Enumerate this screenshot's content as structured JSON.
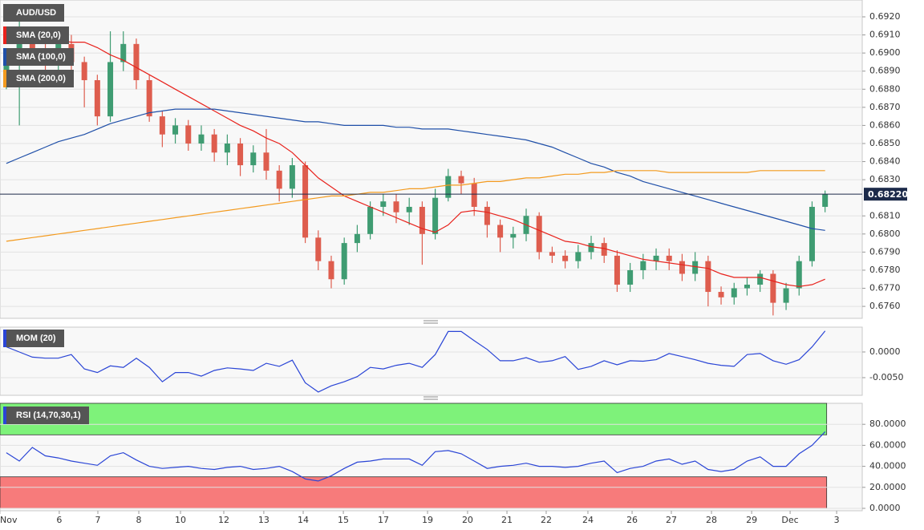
{
  "chart_data": [
    {
      "type": "candlestick",
      "title": "AUD/USD",
      "open": [
        0.6885,
        0.6895,
        0.6905,
        0.69,
        0.6895,
        0.6905,
        0.6895,
        0.6885,
        0.6865,
        0.6895,
        0.6905,
        0.6885,
        0.6865,
        0.6855,
        0.686,
        0.685,
        0.6855,
        0.6845,
        0.685,
        0.6838,
        0.6845,
        0.6835,
        0.6825,
        0.6838,
        0.6798,
        0.6785,
        0.6775,
        0.6795,
        0.68,
        0.6815,
        0.6818,
        0.6812,
        0.6815,
        0.68,
        0.682,
        0.6832,
        0.6828,
        0.6815,
        0.6805,
        0.6798,
        0.68,
        0.681,
        0.679,
        0.6788,
        0.6785,
        0.679,
        0.6795,
        0.6788,
        0.6772,
        0.678,
        0.6785,
        0.6788,
        0.6785,
        0.6778,
        0.6785,
        0.6768,
        0.6765,
        0.677,
        0.6772,
        0.6778,
        0.6762,
        0.677,
        0.6785,
        0.6815
      ],
      "high": [
        0.69,
        0.6925,
        0.691,
        0.6905,
        0.691,
        0.691,
        0.6898,
        0.6888,
        0.6912,
        0.6912,
        0.6908,
        0.6888,
        0.6868,
        0.6864,
        0.6863,
        0.686,
        0.6858,
        0.6855,
        0.6853,
        0.6849,
        0.6858,
        0.6838,
        0.6842,
        0.684,
        0.6802,
        0.6788,
        0.6798,
        0.6805,
        0.6818,
        0.6822,
        0.6822,
        0.682,
        0.6818,
        0.6825,
        0.6836,
        0.6835,
        0.6831,
        0.6818,
        0.6808,
        0.6804,
        0.6814,
        0.6812,
        0.6793,
        0.6791,
        0.6794,
        0.6799,
        0.6798,
        0.6791,
        0.6784,
        0.6789,
        0.6792,
        0.6792,
        0.6789,
        0.679,
        0.6788,
        0.6771,
        0.6773,
        0.6776,
        0.678,
        0.678,
        0.6773,
        0.6788,
        0.6818,
        0.6824
      ],
      "low": [
        0.688,
        0.686,
        0.6895,
        0.689,
        0.689,
        0.689,
        0.687,
        0.686,
        0.6862,
        0.689,
        0.688,
        0.6862,
        0.6848,
        0.685,
        0.6846,
        0.6846,
        0.684,
        0.6838,
        0.6832,
        0.6834,
        0.683,
        0.6818,
        0.682,
        0.6795,
        0.678,
        0.677,
        0.6772,
        0.679,
        0.6797,
        0.681,
        0.6806,
        0.6805,
        0.6783,
        0.6797,
        0.6818,
        0.6822,
        0.681,
        0.6798,
        0.679,
        0.6792,
        0.6796,
        0.6786,
        0.6784,
        0.6781,
        0.6781,
        0.6786,
        0.6784,
        0.6768,
        0.6768,
        0.6775,
        0.678,
        0.678,
        0.6774,
        0.6774,
        0.676,
        0.6761,
        0.6761,
        0.6766,
        0.6768,
        0.6755,
        0.6758,
        0.6766,
        0.6782,
        0.6812
      ],
      "close": [
        0.6895,
        0.6905,
        0.69,
        0.6895,
        0.6905,
        0.6895,
        0.6885,
        0.6865,
        0.6895,
        0.6905,
        0.6885,
        0.6865,
        0.6855,
        0.686,
        0.685,
        0.6855,
        0.6845,
        0.685,
        0.6838,
        0.6845,
        0.6835,
        0.6825,
        0.6838,
        0.6798,
        0.6785,
        0.6775,
        0.6795,
        0.68,
        0.6815,
        0.6818,
        0.6812,
        0.6815,
        0.68,
        0.682,
        0.6832,
        0.6828,
        0.6815,
        0.6805,
        0.6798,
        0.68,
        0.681,
        0.679,
        0.6788,
        0.6785,
        0.679,
        0.6795,
        0.6788,
        0.6772,
        0.678,
        0.6785,
        0.6788,
        0.6785,
        0.6778,
        0.6785,
        0.6768,
        0.6765,
        0.677,
        0.6772,
        0.6778,
        0.6762,
        0.677,
        0.6785,
        0.6815,
        0.6822
      ],
      "up_color": "#3f9c72",
      "down_color": "#de5d4e",
      "series": [
        {
          "name": "SMA (20,0)",
          "color": "#e8221c",
          "values": [
            0.6909,
            0.6908,
            0.6908,
            0.6907,
            0.6907,
            0.6906,
            0.6906,
            0.6903,
            0.6899,
            0.6896,
            0.6892,
            0.6888,
            0.6884,
            0.688,
            0.6876,
            0.6872,
            0.6868,
            0.6864,
            0.686,
            0.6857,
            0.6853,
            0.685,
            0.6845,
            0.6838,
            0.6831,
            0.6826,
            0.6821,
            0.6818,
            0.6815,
            0.6812,
            0.6809,
            0.6806,
            0.6803,
            0.6801,
            0.6805,
            0.6812,
            0.6813,
            0.6812,
            0.681,
            0.6808,
            0.6805,
            0.6802,
            0.6799,
            0.6796,
            0.6795,
            0.6793,
            0.6792,
            0.679,
            0.6788,
            0.6786,
            0.6785,
            0.6784,
            0.6783,
            0.6782,
            0.6781,
            0.6778,
            0.6776,
            0.6776,
            0.6776,
            0.6774,
            0.6772,
            0.6771,
            0.6772,
            0.6775
          ]
        },
        {
          "name": "SMA (100,0)",
          "color": "#1f4fa8",
          "values": [
            0.6839,
            0.6842,
            0.6845,
            0.6848,
            0.6851,
            0.6853,
            0.6855,
            0.6858,
            0.6861,
            0.6863,
            0.6865,
            0.6867,
            0.6868,
            0.6869,
            0.6869,
            0.6869,
            0.6869,
            0.6868,
            0.6867,
            0.6866,
            0.6865,
            0.6864,
            0.6863,
            0.6862,
            0.6862,
            0.6861,
            0.686,
            0.686,
            0.686,
            0.686,
            0.6859,
            0.6859,
            0.6858,
            0.6858,
            0.6858,
            0.6857,
            0.6856,
            0.6855,
            0.6854,
            0.6853,
            0.6852,
            0.685,
            0.6848,
            0.6845,
            0.6842,
            0.6839,
            0.6837,
            0.6834,
            0.6832,
            0.6829,
            0.6827,
            0.6825,
            0.6823,
            0.6821,
            0.6819,
            0.6817,
            0.6815,
            0.6813,
            0.6811,
            0.6809,
            0.6807,
            0.6805,
            0.6803,
            0.6802
          ]
        },
        {
          "name": "SMA (200,0)",
          "color": "#f39a1e",
          "values": [
            0.6796,
            0.6797,
            0.6798,
            0.6799,
            0.68,
            0.6801,
            0.6802,
            0.6803,
            0.6804,
            0.6805,
            0.6806,
            0.6807,
            0.6808,
            0.6809,
            0.681,
            0.6811,
            0.6812,
            0.6813,
            0.6814,
            0.6815,
            0.6816,
            0.6817,
            0.6818,
            0.6819,
            0.682,
            0.6821,
            0.6821,
            0.6822,
            0.6823,
            0.6823,
            0.6824,
            0.6825,
            0.6825,
            0.6826,
            0.6827,
            0.6827,
            0.6828,
            0.6829,
            0.6829,
            0.683,
            0.6831,
            0.6831,
            0.6832,
            0.6833,
            0.6833,
            0.6834,
            0.6834,
            0.6835,
            0.6835,
            0.6835,
            0.6835,
            0.6834,
            0.6834,
            0.6834,
            0.6834,
            0.6834,
            0.6834,
            0.6834,
            0.6835,
            0.6835,
            0.6835,
            0.6835,
            0.6835,
            0.6835
          ]
        }
      ],
      "last_price": {
        "value": 0.6822,
        "label": "0.68220"
      },
      "last_price_color": "#1c2a4a",
      "ylim": [
        0.67534,
        0.69293
      ],
      "yticks": [
        {
          "value": 0.676,
          "label": "0.6760"
        },
        {
          "value": 0.677,
          "label": "0.6770"
        },
        {
          "value": 0.678,
          "label": "0.6780"
        },
        {
          "value": 0.679,
          "label": "0.6790"
        },
        {
          "value": 0.68,
          "label": "0.6800"
        },
        {
          "value": 0.681,
          "label": "0.6810"
        },
        {
          "value": 0.683,
          "label": "0.6830"
        },
        {
          "value": 0.684,
          "label": "0.6840"
        },
        {
          "value": 0.685,
          "label": "0.6850"
        },
        {
          "value": 0.686,
          "label": "0.6860"
        },
        {
          "value": 0.687,
          "label": "0.6870"
        },
        {
          "value": 0.688,
          "label": "0.6880"
        },
        {
          "value": 0.689,
          "label": "0.6890"
        },
        {
          "value": 0.69,
          "label": "0.6900"
        },
        {
          "value": 0.691,
          "label": "0.6910"
        },
        {
          "value": 0.692,
          "label": "0.6920"
        }
      ],
      "grid": true
    },
    {
      "type": "line",
      "series": [
        {
          "name": "MOM (20)",
          "color": "#2a45d6",
          "values": [
            0.001,
            0.0,
            -0.001,
            -0.0012,
            -0.0012,
            -0.0005,
            -0.0033,
            -0.004,
            -0.0027,
            -0.003,
            -0.0012,
            -0.003,
            -0.0058,
            -0.004,
            -0.004,
            -0.0047,
            -0.0036,
            -0.0031,
            -0.0033,
            -0.0036,
            -0.0022,
            -0.0028,
            -0.0016,
            -0.006,
            -0.0078,
            -0.0066,
            -0.0058,
            -0.0048,
            -0.003,
            -0.0033,
            -0.0026,
            -0.0022,
            -0.003,
            -0.0005,
            0.004,
            0.004,
            0.0022,
            0.0005,
            -0.0017,
            -0.0017,
            -0.0011,
            -0.002,
            -0.0017,
            -0.0009,
            -0.0034,
            -0.0028,
            -0.0017,
            -0.0025,
            -0.0017,
            -0.0018,
            -0.0015,
            -0.0003,
            -0.0009,
            -0.0015,
            -0.0022,
            -0.0026,
            -0.0028,
            -0.0005,
            -0.0003,
            -0.0017,
            -0.0024,
            -0.0015,
            0.001,
            0.0041
          ]
        }
      ],
      "ylim": [
        -0.00844,
        0.00484
      ],
      "yticks": [
        {
          "value": -0.005,
          "label": "-0.0050"
        },
        {
          "value": 0,
          "label": "0.0000"
        }
      ],
      "grid": true
    },
    {
      "type": "line",
      "series": [
        {
          "name": "RSI (14,70,30,1)",
          "color": "#2a45d6",
          "values": [
            53,
            45,
            58,
            50,
            48,
            45,
            43,
            41,
            50,
            53,
            46,
            40,
            38,
            39,
            40,
            38,
            37,
            39,
            40,
            37,
            38,
            40,
            35,
            28,
            26,
            31,
            38,
            44,
            45,
            47,
            47,
            47,
            41,
            54,
            55,
            52,
            45,
            38,
            40,
            41,
            43,
            40,
            40,
            39,
            40,
            43,
            45,
            34,
            38,
            40,
            45,
            47,
            42,
            45,
            37,
            35,
            37,
            45,
            49,
            40,
            40,
            52,
            60,
            73
          ]
        }
      ],
      "zones": [
        {
          "from": 70,
          "to": 100,
          "color": "#7ef27a"
        },
        {
          "from": 0,
          "to": 30,
          "color": "#f77b7b"
        }
      ],
      "ylim": [
        -2.3,
        100
      ],
      "yticks": [
        {
          "value": 0,
          "label": "0.0000"
        },
        {
          "value": 20,
          "label": "20.0000"
        },
        {
          "value": 40,
          "label": "40.0000"
        },
        {
          "value": 60,
          "label": "60.0000"
        },
        {
          "value": 80,
          "label": "80.0000"
        }
      ],
      "xlim": [
        -0.49,
        65.86
      ],
      "xticks": [
        {
          "value": -0.5,
          "label": "Nov"
        },
        {
          "value": 4.07,
          "label": "6"
        },
        {
          "value": 7.04,
          "label": "7"
        },
        {
          "value": 10.19,
          "label": "8"
        },
        {
          "value": 13.4,
          "label": "10"
        },
        {
          "value": 16.73,
          "label": "12"
        },
        {
          "value": 19.81,
          "label": "13"
        },
        {
          "value": 22.84,
          "label": "14"
        },
        {
          "value": 25.93,
          "label": "15"
        },
        {
          "value": 29.01,
          "label": "17"
        },
        {
          "value": 32.41,
          "label": "19"
        },
        {
          "value": 35.49,
          "label": "20"
        },
        {
          "value": 38.52,
          "label": "21"
        },
        {
          "value": 41.54,
          "label": "22"
        },
        {
          "value": 44.75,
          "label": "24"
        },
        {
          "value": 48.15,
          "label": "26"
        },
        {
          "value": 51.17,
          "label": "27"
        },
        {
          "value": 54.26,
          "label": "28"
        },
        {
          "value": 57.35,
          "label": "29"
        },
        {
          "value": 60.31,
          "label": "Dec"
        },
        {
          "value": 63.89,
          "label": "3"
        }
      ],
      "grid": true
    }
  ]
}
